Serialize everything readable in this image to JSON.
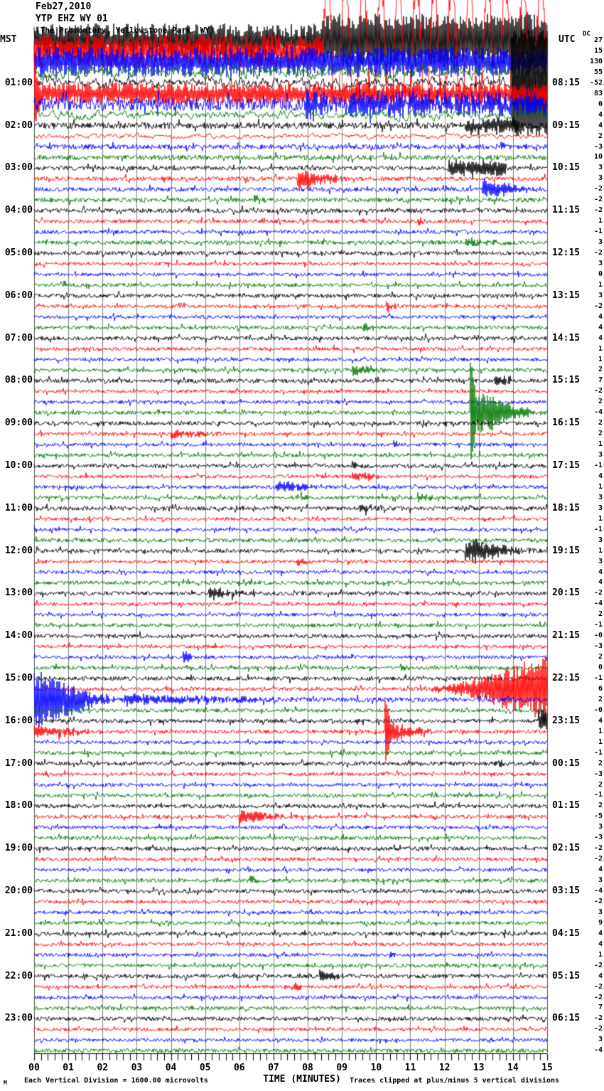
{
  "header": {
    "date": "Feb27,2010",
    "station": "YTP EHZ WY 01",
    "location": "(The Promontory, Yellowstone Park, WY)",
    "left_tz": "MST",
    "right_tz": "UTC",
    "dc_header": "DC"
  },
  "footer": {
    "scale_note": "Each Vertical Division = 1600.00 microvolts",
    "xlabel": "TIME (MINUTES)",
    "clip_note": "Traces clipped at plus/minus 5 vertical divisions",
    "logo": "M"
  },
  "colors": {
    "trace_cycle": [
      "#000000",
      "#ff0000",
      "#0000ff",
      "#007700"
    ],
    "grid": "#808080",
    "axis": "#000000"
  },
  "chart_data": {
    "type": "line",
    "title": "Helicorder seismogram YTP EHZ WY 01, Feb27,2010",
    "xlabel": "TIME (MINUTES)",
    "x_range": [
      0,
      15
    ],
    "x_ticks": [
      "00",
      "01",
      "02",
      "03",
      "04",
      "05",
      "06",
      "07",
      "08",
      "09",
      "10",
      "11",
      "12",
      "13",
      "14",
      "15"
    ],
    "minutes_per_line": 15,
    "clip_divisions": 5,
    "microvolts_per_division": "1600.00",
    "traces": [
      {
        "m": "",
        "u": "",
        "dc": "27",
        "a": 20,
        "d": 1,
        "ev": [
          [
            8.4,
            15,
            14,
            0
          ]
        ]
      },
      {
        "m": "",
        "u": "",
        "dc": "15",
        "a": 20,
        "d": 1,
        "ev": [
          [
            8.45,
            15,
            85,
            4
          ]
        ]
      },
      {
        "m": "",
        "u": "",
        "dc": "130",
        "a": 18,
        "d": 1,
        "ev": []
      },
      {
        "m": "",
        "u": "",
        "dc": "55",
        "a": 11,
        "sm": 1,
        "ev": []
      },
      {
        "m": "01:00",
        "u": "08:15",
        "dc": "-52",
        "a": 9,
        "sm": 1,
        "ev": [
          [
            13.95,
            15,
            74,
            3
          ]
        ]
      },
      {
        "m": "",
        "u": "",
        "dc": "83",
        "a": 13,
        "d": 1,
        "ev": [
          [
            0,
            0.2,
            55,
            1
          ]
        ]
      },
      {
        "m": "",
        "u": "",
        "dc": "0",
        "a": 9,
        "ev": [
          [
            7.95,
            9.2,
            20,
            1
          ],
          [
            9.2,
            15,
            11,
            0
          ]
        ]
      },
      {
        "m": "",
        "u": "",
        "dc": "4",
        "a": 7,
        "sm": 1,
        "ev": []
      },
      {
        "m": "02:00",
        "u": "09:15",
        "dc": "4",
        "a": 4.5,
        "ev": [
          [
            12.6,
            14.2,
            8,
            0
          ]
        ]
      },
      {
        "m": "",
        "u": "",
        "dc": "2",
        "a": 4,
        "sm": 1,
        "ev": []
      },
      {
        "m": "",
        "u": "",
        "dc": "-3",
        "a": 3.5,
        "ev": []
      },
      {
        "m": "",
        "u": "",
        "dc": "10",
        "a": 3.5,
        "ev": []
      },
      {
        "m": "03:00",
        "u": "10:15",
        "dc": "3",
        "a": 3,
        "ev": [
          [
            12.1,
            13.8,
            8,
            0
          ]
        ]
      },
      {
        "m": "",
        "u": "",
        "dc": "3",
        "a": 3,
        "ev": [
          [
            7.7,
            9.6,
            12,
            1
          ]
        ]
      },
      {
        "m": "",
        "u": "",
        "dc": "-2",
        "a": 3,
        "ev": [
          [
            13.1,
            15,
            12,
            1
          ]
        ]
      },
      {
        "m": "",
        "u": "",
        "dc": "-2",
        "a": 3,
        "ev": [
          [
            6.4,
            6.9,
            5,
            1
          ]
        ]
      },
      {
        "m": "04:00",
        "u": "11:15",
        "dc": "-2",
        "a": 3,
        "ev": []
      },
      {
        "m": "",
        "u": "",
        "dc": "1",
        "a": 2.6,
        "ev": [
          [
            11.2,
            11.7,
            5,
            1
          ]
        ]
      },
      {
        "m": "",
        "u": "",
        "dc": "-1",
        "a": 2.6,
        "ev": []
      },
      {
        "m": "",
        "u": "",
        "dc": "3",
        "a": 2.8,
        "ev": [
          [
            12.6,
            14.4,
            5,
            1
          ]
        ]
      },
      {
        "m": "05:00",
        "u": "12:15",
        "dc": "-2",
        "a": 2.8,
        "ev": []
      },
      {
        "m": "",
        "u": "",
        "dc": "3",
        "a": 2.4,
        "ev": []
      },
      {
        "m": "",
        "u": "",
        "dc": "0",
        "a": 2.4,
        "ev": []
      },
      {
        "m": "",
        "u": "",
        "dc": "1",
        "a": 2.6,
        "ev": []
      },
      {
        "m": "06:00",
        "u": "13:15",
        "dc": "3",
        "a": 2.8,
        "ev": []
      },
      {
        "m": "",
        "u": "",
        "dc": "-2",
        "a": 2.4,
        "ev": [
          [
            10.3,
            10.8,
            5,
            1
          ]
        ]
      },
      {
        "m": "",
        "u": "",
        "dc": "4",
        "a": 2.4,
        "ev": []
      },
      {
        "m": "",
        "u": "",
        "dc": "4",
        "a": 2.6,
        "ev": [
          [
            9.6,
            10.2,
            5,
            1
          ]
        ]
      },
      {
        "m": "07:00",
        "u": "14:15",
        "dc": "4",
        "a": 2.8,
        "ev": []
      },
      {
        "m": "",
        "u": "",
        "dc": "1",
        "a": 2.4,
        "ev": []
      },
      {
        "m": "",
        "u": "",
        "dc": "1",
        "a": 2.4,
        "ev": []
      },
      {
        "m": "",
        "u": "",
        "dc": "2",
        "a": 2.6,
        "ev": [
          [
            9.3,
            10.7,
            6,
            1
          ]
        ]
      },
      {
        "m": "08:00",
        "u": "15:15",
        "dc": "7",
        "a": 2.8,
        "ev": [
          [
            13.45,
            13.95,
            5,
            0
          ]
        ]
      },
      {
        "m": "",
        "u": "",
        "dc": "-2",
        "a": 2.4,
        "ev": []
      },
      {
        "m": "",
        "u": "",
        "dc": "2",
        "a": 2.4,
        "ev": []
      },
      {
        "m": "",
        "u": "",
        "dc": "-4",
        "a": 2.6,
        "ev": [
          [
            12.75,
            12.95,
            74,
            5
          ],
          [
            12.95,
            15,
            26,
            1
          ]
        ]
      },
      {
        "m": "09:00",
        "u": "16:15",
        "dc": "2",
        "a": 2.8,
        "ev": []
      },
      {
        "m": "",
        "u": "",
        "dc": "2",
        "a": 2.4,
        "ev": [
          [
            4.0,
            5.9,
            5,
            1
          ]
        ]
      },
      {
        "m": "",
        "u": "",
        "dc": "1",
        "a": 2.4,
        "ev": [
          [
            10.5,
            11.0,
            5,
            1
          ]
        ]
      },
      {
        "m": "",
        "u": "",
        "dc": "3",
        "a": 2.6,
        "ev": []
      },
      {
        "m": "10:00",
        "u": "17:15",
        "dc": "-1",
        "a": 2.8,
        "ev": [
          [
            9.3,
            9.8,
            4,
            1
          ]
        ]
      },
      {
        "m": "",
        "u": "",
        "dc": "4",
        "a": 2.4,
        "ev": [
          [
            9.3,
            10.3,
            6,
            1
          ]
        ]
      },
      {
        "m": "",
        "u": "",
        "dc": "1",
        "a": 2.4,
        "ev": [
          [
            7.1,
            8.8,
            7,
            1
          ]
        ]
      },
      {
        "m": "",
        "u": "",
        "dc": "3",
        "a": 2.6,
        "ev": [
          [
            7.8,
            8.1,
            5,
            1
          ],
          [
            11.2,
            11.9,
            6,
            1
          ]
        ]
      },
      {
        "m": "11:00",
        "u": "18:15",
        "dc": "3",
        "a": 2.8,
        "ev": [
          [
            9.5,
            10.3,
            6,
            1
          ]
        ]
      },
      {
        "m": "",
        "u": "",
        "dc": "1",
        "a": 2.4,
        "ev": []
      },
      {
        "m": "",
        "u": "",
        "dc": "-1",
        "a": 2.4,
        "ev": []
      },
      {
        "m": "",
        "u": "",
        "dc": "3",
        "a": 2.6,
        "ev": []
      },
      {
        "m": "12:00",
        "u": "19:15",
        "dc": "1",
        "a": 2.8,
        "ev": [
          [
            12.6,
            15,
            15,
            1
          ]
        ]
      },
      {
        "m": "",
        "u": "",
        "dc": "3",
        "a": 2.4,
        "ev": [
          [
            7.7,
            8.2,
            5,
            1
          ]
        ]
      },
      {
        "m": "",
        "u": "",
        "dc": "4",
        "a": 2.4,
        "ev": []
      },
      {
        "m": "",
        "u": "",
        "dc": "4",
        "a": 2.6,
        "ev": []
      },
      {
        "m": "13:00",
        "u": "20:15",
        "dc": "-2",
        "a": 2.8,
        "ev": [
          [
            5.1,
            6.5,
            7,
            1
          ]
        ]
      },
      {
        "m": "",
        "u": "",
        "dc": "-4",
        "a": 2.4,
        "ev": []
      },
      {
        "m": "",
        "u": "",
        "dc": "2",
        "a": 2.4,
        "ev": []
      },
      {
        "m": "",
        "u": "",
        "dc": "-1",
        "a": 2.6,
        "ev": []
      },
      {
        "m": "14:00",
        "u": "21:15",
        "dc": "-0",
        "a": 2.8,
        "ev": []
      },
      {
        "m": "",
        "u": "",
        "dc": "-3",
        "a": 2.4,
        "ev": []
      },
      {
        "m": "",
        "u": "",
        "dc": "2",
        "a": 2.4,
        "ev": [
          [
            4.35,
            4.6,
            8,
            5
          ]
        ]
      },
      {
        "m": "",
        "u": "",
        "dc": "0",
        "a": 2.6,
        "ev": [
          [
            10.7,
            11.2,
            5,
            1
          ]
        ]
      },
      {
        "m": "15:00",
        "u": "22:15",
        "dc": "-1",
        "a": 2.8,
        "ev": []
      },
      {
        "m": "",
        "u": "",
        "dc": "6",
        "a": 2.6,
        "ev": [
          [
            11.0,
            15,
            42,
            2
          ]
        ]
      },
      {
        "m": "",
        "u": "",
        "dc": "2",
        "a": 3.2,
        "ev": [
          [
            0,
            2.6,
            36,
            1
          ],
          [
            2.6,
            8.8,
            6,
            1
          ]
        ]
      },
      {
        "m": "",
        "u": "",
        "dc": "-0",
        "a": 2.6,
        "ev": []
      },
      {
        "m": "16:00",
        "u": "23:15",
        "dc": "4",
        "a": 2.8,
        "ev": [
          [
            14.75,
            15,
            13,
            0
          ]
        ]
      },
      {
        "m": "",
        "u": "",
        "dc": "1",
        "a": 2.6,
        "ev": [
          [
            0,
            2.5,
            8,
            1
          ],
          [
            10.25,
            10.45,
            46,
            5
          ],
          [
            10.45,
            12.0,
            11,
            1
          ]
        ]
      },
      {
        "m": "",
        "u": "",
        "dc": "1",
        "a": 2.4,
        "ev": []
      },
      {
        "m": "",
        "u": "",
        "dc": "-1",
        "a": 2.6,
        "ev": [
          [
            8.7,
            9.2,
            5,
            1
          ]
        ]
      },
      {
        "m": "17:00",
        "u": "00:15",
        "dc": "2",
        "a": 2.8,
        "ev": [
          [
            13.45,
            13.95,
            5,
            1
          ]
        ]
      },
      {
        "m": "",
        "u": "",
        "dc": "-3",
        "a": 2.4,
        "ev": []
      },
      {
        "m": "",
        "u": "",
        "dc": "2",
        "a": 2.4,
        "ev": []
      },
      {
        "m": "",
        "u": "",
        "dc": "-1",
        "a": 2.6,
        "ev": []
      },
      {
        "m": "18:00",
        "u": "01:15",
        "dc": "2",
        "a": 2.8,
        "ev": []
      },
      {
        "m": "",
        "u": "",
        "dc": "-5",
        "a": 2.6,
        "ev": [
          [
            6.0,
            7.95,
            8,
            1
          ]
        ]
      },
      {
        "m": "",
        "u": "",
        "dc": "3",
        "a": 2.4,
        "ev": []
      },
      {
        "m": "",
        "u": "",
        "dc": "-3",
        "a": 2.6,
        "ev": []
      },
      {
        "m": "19:00",
        "u": "02:15",
        "dc": "-2",
        "a": 2.8,
        "ev": []
      },
      {
        "m": "",
        "u": "",
        "dc": "-2",
        "a": 2.4,
        "ev": []
      },
      {
        "m": "",
        "u": "",
        "dc": "4",
        "a": 2.4,
        "ev": []
      },
      {
        "m": "",
        "u": "",
        "dc": "3",
        "a": 2.6,
        "ev": [
          [
            6.3,
            6.8,
            5,
            1
          ]
        ]
      },
      {
        "m": "20:00",
        "u": "03:15",
        "dc": "-4",
        "a": 2.8,
        "ev": []
      },
      {
        "m": "",
        "u": "",
        "dc": "-2",
        "a": 2.4,
        "ev": []
      },
      {
        "m": "",
        "u": "",
        "dc": "3",
        "a": 2.4,
        "ev": []
      },
      {
        "m": "",
        "u": "",
        "dc": "9",
        "a": 2.6,
        "ev": []
      },
      {
        "m": "21:00",
        "u": "04:15",
        "dc": "4",
        "a": 2.8,
        "ev": []
      },
      {
        "m": "",
        "u": "",
        "dc": "4",
        "a": 2.4,
        "ev": []
      },
      {
        "m": "",
        "u": "",
        "dc": "1",
        "a": 2.4,
        "ev": [
          [
            10.4,
            10.7,
            4,
            1
          ]
        ]
      },
      {
        "m": "",
        "u": "",
        "dc": "-2",
        "a": 2.6,
        "ev": []
      },
      {
        "m": "22:00",
        "u": "05:15",
        "dc": "4",
        "a": 2.8,
        "ev": [
          [
            8.35,
            9.3,
            7,
            1
          ]
        ]
      },
      {
        "m": "",
        "u": "",
        "dc": "-2",
        "a": 2.4,
        "ev": [
          [
            7.6,
            7.9,
            5,
            5
          ]
        ]
      },
      {
        "m": "",
        "u": "",
        "dc": "-2",
        "a": 2.4,
        "ev": []
      },
      {
        "m": "",
        "u": "",
        "dc": "7",
        "a": 2.6,
        "ev": []
      },
      {
        "m": "23:00",
        "u": "06:15",
        "dc": "-2",
        "a": 2.8,
        "ev": []
      },
      {
        "m": "",
        "u": "",
        "dc": "-2",
        "a": 2.4,
        "ev": []
      },
      {
        "m": "",
        "u": "",
        "dc": "3",
        "a": 2.4,
        "ev": [
          [
            13.3,
            13.6,
            4,
            1
          ]
        ]
      },
      {
        "m": "",
        "u": "",
        "dc": "-4",
        "a": 2.6,
        "ev": []
      }
    ]
  }
}
